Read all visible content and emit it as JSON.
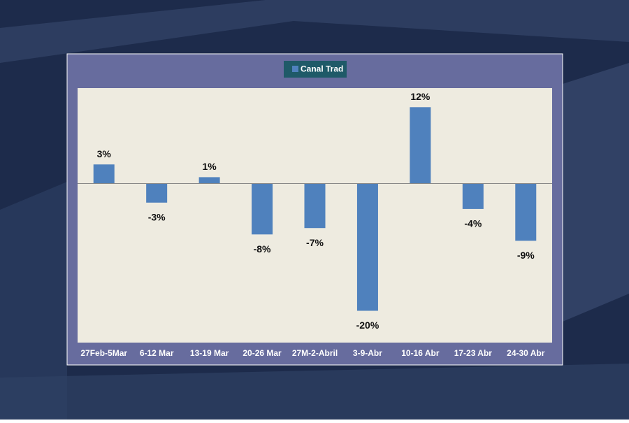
{
  "chart_data": {
    "type": "bar",
    "series": [
      {
        "name": "Canal Trad",
        "color": "#4f81bd",
        "values": [
          3,
          -3,
          1,
          -8,
          -7,
          -20,
          12,
          -4,
          -9
        ],
        "value_labels": [
          "3%",
          "-3%",
          "1%",
          "-8%",
          "-7%",
          "-20%",
          "12%",
          "-4%",
          "-9%"
        ]
      }
    ],
    "categories": [
      "27Feb-5Mar",
      "6-12 Mar",
      "13-19 Mar",
      "20-26 Mar",
      "27M-2-Abril",
      "3-9-Abr",
      "10-16 Abr",
      "17-23 Abr",
      "24-30 Abr"
    ],
    "ylim": [
      -25,
      15
    ],
    "legend": "top"
  }
}
